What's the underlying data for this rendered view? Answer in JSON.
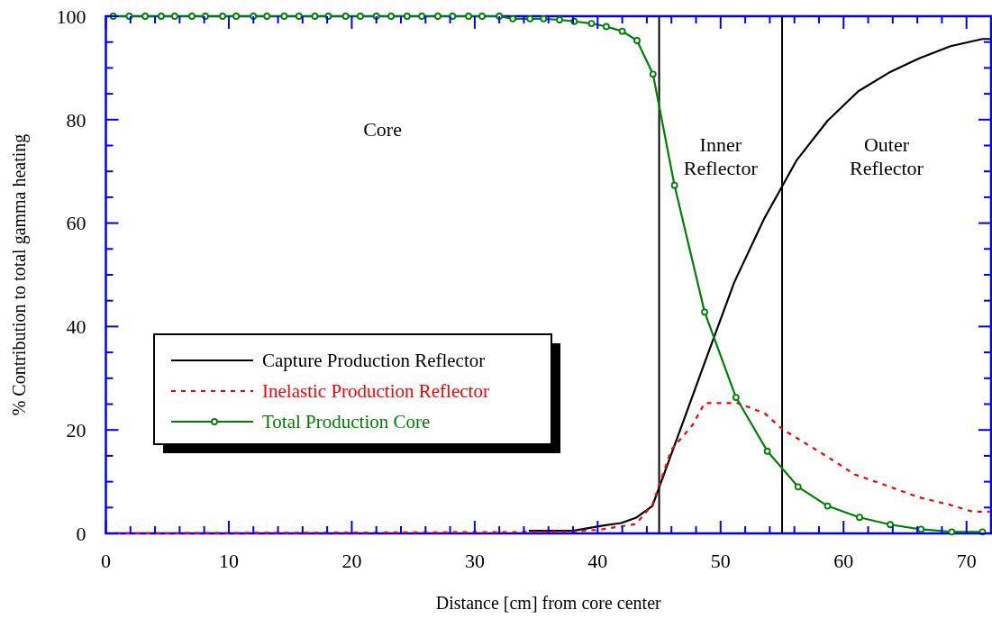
{
  "chart_data": {
    "type": "line",
    "xlabel": "Distance [cm] from core center",
    "ylabel": "% Contribution to total gamma heating",
    "xlim": [
      0,
      72
    ],
    "ylim": [
      0,
      100
    ],
    "xticks": [
      0,
      {
        "value": 2,
        "label": null
      },
      {
        "value": 4,
        "label": null
      },
      {
        "value": 6,
        "label": null
      },
      {
        "value": 8,
        "label": null
      },
      10,
      {
        "value": 12,
        "label": null
      },
      {
        "value": 14,
        "label": null
      },
      {
        "value": 16,
        "label": null
      },
      {
        "value": 18,
        "label": null
      },
      20,
      {
        "value": 22,
        "label": null
      },
      {
        "value": 24,
        "label": null
      },
      {
        "value": 26,
        "label": null
      },
      {
        "value": 28,
        "label": null
      },
      30,
      {
        "value": 32,
        "label": null
      },
      {
        "value": 34,
        "label": null
      },
      {
        "value": 36,
        "label": null
      },
      {
        "value": 38,
        "label": null
      },
      40,
      {
        "value": 42,
        "label": null
      },
      {
        "value": 44,
        "label": null
      },
      {
        "value": 46,
        "label": null
      },
      {
        "value": 48,
        "label": null
      },
      50,
      {
        "value": 52,
        "label": null
      },
      {
        "value": 54,
        "label": null
      },
      {
        "value": 56,
        "label": null
      },
      {
        "value": 58,
        "label": null
      },
      60,
      {
        "value": 62,
        "label": null
      },
      {
        "value": 64,
        "label": null
      },
      {
        "value": 66,
        "label": null
      },
      {
        "value": 68,
        "label": null
      },
      70
    ],
    "yticks": [
      0,
      {
        "value": 5,
        "label": null
      },
      {
        "value": 10,
        "label": null
      },
      {
        "value": 15,
        "label": null
      },
      20,
      {
        "value": 25,
        "label": null
      },
      {
        "value": 30,
        "label": null
      },
      {
        "value": 35,
        "label": null
      },
      40,
      {
        "value": 45,
        "label": null
      },
      {
        "value": 50,
        "label": null
      },
      {
        "value": 55,
        "label": null
      },
      60,
      {
        "value": 65,
        "label": null
      },
      {
        "value": 70,
        "label": null
      },
      {
        "value": 75,
        "label": null
      },
      80,
      {
        "value": 85,
        "label": null
      },
      {
        "value": 90,
        "label": null
      },
      {
        "value": 95,
        "label": null
      },
      100
    ],
    "grid": false,
    "legend": "bottom left",
    "ref_lines": [
      {
        "axis": "x",
        "value": 45,
        "color": "#000000"
      },
      {
        "axis": "x",
        "value": 55,
        "color": "#000000"
      }
    ],
    "annotations": [
      "Core",
      "Inner\nReflector",
      "Outer\nReflector"
    ],
    "series": [
      {
        "name": "Capture Production Reflector",
        "color": "#000000",
        "line_style": "solid",
        "marker": "none",
        "x": [
          34.4,
          38.0,
          40.4,
          41.9,
          43.1,
          44.45,
          46.25,
          48.7,
          51.1,
          53.55,
          56.2,
          58.7,
          61.2,
          63.7,
          66.2,
          68.7,
          71.3,
          72
        ],
        "values": [
          0.5,
          0.5,
          1.5,
          2.0,
          3.0,
          5.3,
          17,
          33,
          48.5,
          60.9,
          72.2,
          79.8,
          85.5,
          89.1,
          91.9,
          94.2,
          95.6,
          95.6
        ]
      },
      {
        "name": "Inelastic Production Reflector",
        "color": "#ff0000",
        "line_style": "dashed",
        "marker": "none",
        "x": [
          0,
          38.0,
          40.4,
          43.1,
          44.45,
          46.0,
          47.7,
          48.7,
          51.4,
          53.6,
          55.0,
          58.7,
          60.9,
          63.8,
          66.1,
          68.7,
          70.5,
          71.9
        ],
        "values": [
          0,
          0.3,
          0.8,
          1.8,
          5.5,
          16.2,
          20.9,
          25.2,
          25.2,
          23.2,
          20.2,
          14.8,
          11.4,
          9.0,
          7.0,
          5.5,
          4.2,
          4.2
        ]
      },
      {
        "name": "Total Production Core",
        "color": "#008000",
        "line_style": "solid",
        "marker": "circle",
        "x": [
          0.6,
          1.9,
          3.2,
          4.5,
          5.6,
          7.0,
          8.1,
          9.5,
          10.6,
          12.0,
          13.1,
          14.5,
          15.7,
          17.0,
          18.1,
          19.5,
          20.7,
          22.0,
          23.2,
          24.5,
          25.7,
          27.0,
          28.2,
          29.5,
          30.6,
          32.0,
          33.1,
          34.5,
          35.6,
          36.9,
          38.1,
          39.5,
          40.7,
          42.0,
          43.2,
          44.5,
          46.25,
          48.7,
          51.25,
          53.8,
          56.3,
          58.7,
          61.3,
          63.8,
          66.3,
          68.8,
          71.3
        ],
        "values": [
          100,
          100,
          100,
          100,
          100,
          100,
          100,
          100,
          100,
          100,
          100,
          100,
          100,
          100,
          100,
          100,
          100,
          100,
          100,
          100,
          100,
          100,
          100,
          100,
          100,
          100,
          99.5,
          99.5,
          99.5,
          99.3,
          99,
          98.6,
          98,
          97.1,
          95.3,
          88.8,
          67.3,
          42.8,
          26.3,
          15.9,
          9.0,
          5.3,
          3.1,
          1.7,
          0.8,
          0.3,
          0.3
        ]
      }
    ]
  }
}
